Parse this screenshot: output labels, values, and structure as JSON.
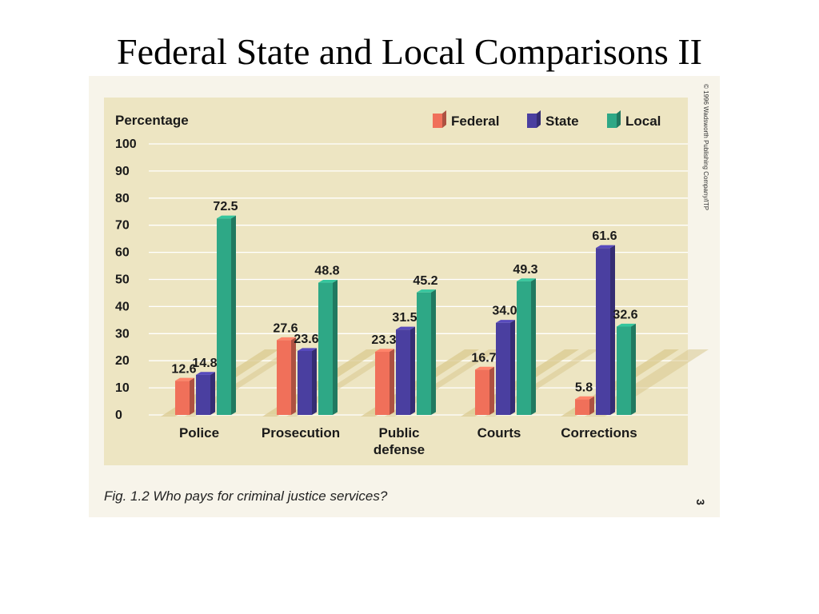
{
  "slide": {
    "title": "Federal State and Local Comparisons II"
  },
  "figure": {
    "caption": "Fig. 1.2  Who pays for criminal justice services?",
    "credit": "© 1996 Wadsworth Publishing Company/ITP",
    "page_number": "3"
  },
  "colors": {
    "Federal": "#f0705a",
    "State": "#4a3fa0",
    "Local": "#2ea886",
    "plot_bg": "#ede5c2",
    "floor_stripe": "#d9c98f",
    "gridline": "#ffffff"
  },
  "chart_data": {
    "type": "bar",
    "title": "",
    "ylabel": "Percentage",
    "xlabel": "",
    "ylim": [
      0,
      100
    ],
    "yticks": [
      0,
      10,
      20,
      30,
      40,
      50,
      60,
      70,
      80,
      90,
      100
    ],
    "grid": true,
    "legend_position": "top-right",
    "categories": [
      "Police",
      "Prosecution",
      "Public\ndefense",
      "Courts",
      "Corrections"
    ],
    "series": [
      {
        "name": "Federal",
        "values": [
          12.6,
          27.6,
          23.3,
          16.7,
          5.8
        ]
      },
      {
        "name": "State",
        "values": [
          14.8,
          23.6,
          31.5,
          34.0,
          61.6
        ]
      },
      {
        "name": "Local",
        "values": [
          72.5,
          48.8,
          45.2,
          49.3,
          32.6
        ]
      }
    ],
    "data_labels": [
      [
        "12.6",
        "27.6",
        "23.3",
        "16.7",
        "5.8"
      ],
      [
        "14.8",
        "23.6",
        "31.5",
        "34.0",
        "61.6"
      ],
      [
        "72.5",
        "48.8",
        "45.2",
        "49.3",
        "32.6"
      ]
    ]
  }
}
